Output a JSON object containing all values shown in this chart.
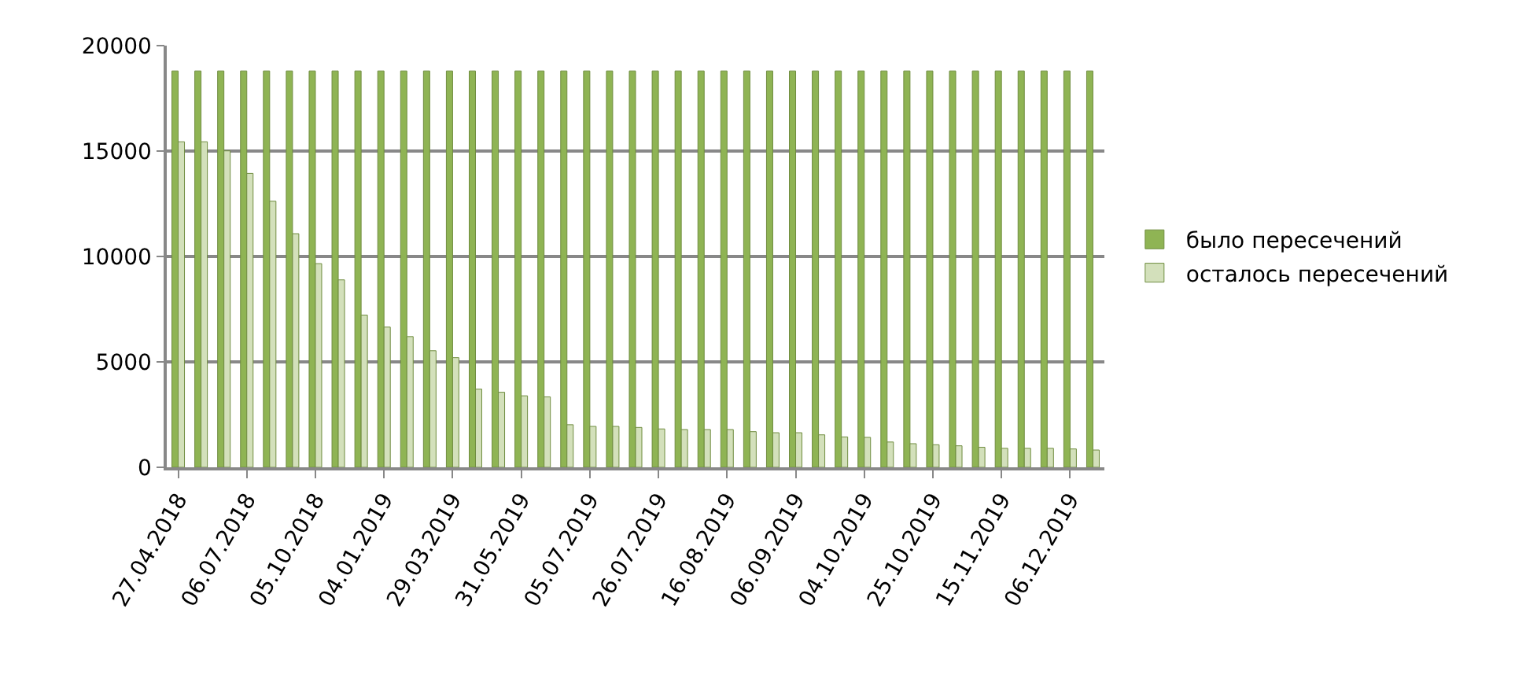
{
  "chart_data": {
    "type": "bar",
    "categories": [
      "27.04.2018",
      null,
      null,
      "06.07.2018",
      null,
      null,
      "05.10.2018",
      null,
      null,
      "04.01.2019",
      null,
      null,
      "29.03.2019",
      null,
      null,
      "31.05.2019",
      null,
      null,
      "05.07.2019",
      null,
      null,
      "26.07.2019",
      null,
      null,
      "16.08.2019",
      null,
      null,
      "06.09.2019",
      null,
      null,
      "04.10.2019",
      null,
      null,
      "25.10.2019",
      null,
      null,
      "15.11.2019",
      null,
      null,
      "06.12.2019",
      null
    ],
    "series": [
      {
        "name": "было пересечений",
        "color": "#8fb454",
        "values": [
          18800,
          18800,
          18800,
          18800,
          18800,
          18800,
          18800,
          18800,
          18800,
          18800,
          18800,
          18800,
          18800,
          18800,
          18800,
          18800,
          18800,
          18800,
          18800,
          18800,
          18800,
          18800,
          18800,
          18800,
          18800,
          18800,
          18800,
          18800,
          18800,
          18800,
          18800,
          18800,
          18800,
          18800,
          18800,
          18800,
          18800,
          18800,
          18800,
          18800,
          18800
        ]
      },
      {
        "name": "осталось пересечений",
        "color": "#d3e0bb",
        "values": [
          15440,
          15440,
          15010,
          13940,
          12620,
          11080,
          9660,
          8890,
          7220,
          6650,
          6200,
          5530,
          5200,
          3710,
          3560,
          3390,
          3340,
          2020,
          1940,
          1940,
          1890,
          1820,
          1790,
          1790,
          1790,
          1690,
          1640,
          1640,
          1540,
          1440,
          1420,
          1200,
          1120,
          1070,
          1020,
          950,
          900,
          900,
          900,
          870,
          820
        ]
      }
    ],
    "ylim": [
      0,
      20000
    ],
    "yticks": [
      0,
      5000,
      10000,
      15000,
      20000
    ],
    "grid": "y",
    "legend": "right"
  }
}
